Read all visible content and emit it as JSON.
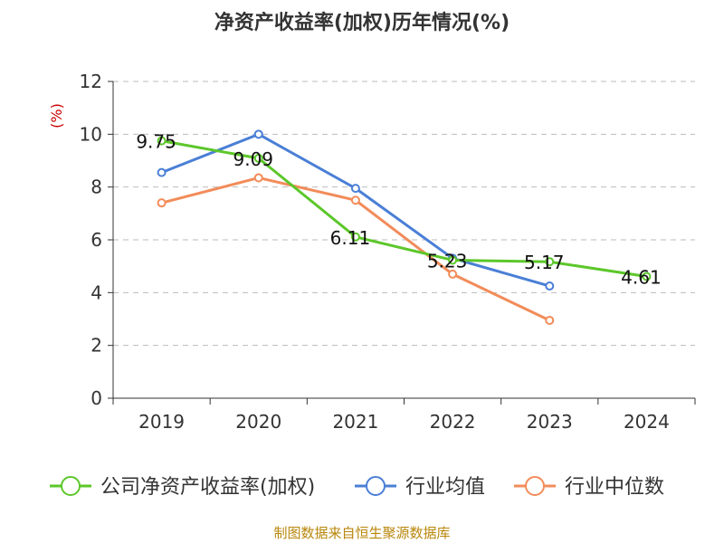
{
  "chart_data": {
    "type": "line",
    "title": "净资产收益率(加权)历年情况(%)",
    "ylabel": "(%)",
    "xlabel": "",
    "categories": [
      "2019",
      "2020",
      "2021",
      "2022",
      "2023",
      "2024"
    ],
    "ylim": [
      0,
      12
    ],
    "yticks": [
      0,
      2,
      4,
      6,
      8,
      10,
      12
    ],
    "grid": true,
    "legend_position": "bottom",
    "series": [
      {
        "name": "公司净资产收益率(加权)",
        "color": "#5cc72a",
        "values": [
          9.75,
          9.09,
          6.11,
          5.23,
          5.17,
          4.61
        ],
        "labels": [
          "9.75",
          "9.09",
          "6.11",
          "5.23",
          "5.17",
          "4.61"
        ]
      },
      {
        "name": "行业均值",
        "color": "#4a7fd6",
        "values": [
          8.55,
          10.0,
          7.95,
          5.3,
          4.25,
          null
        ]
      },
      {
        "name": "行业中位数",
        "color": "#f28c5a",
        "values": [
          7.4,
          8.35,
          7.5,
          4.7,
          2.95,
          null
        ]
      }
    ],
    "source": "制图数据来自恒生聚源数据库"
  }
}
